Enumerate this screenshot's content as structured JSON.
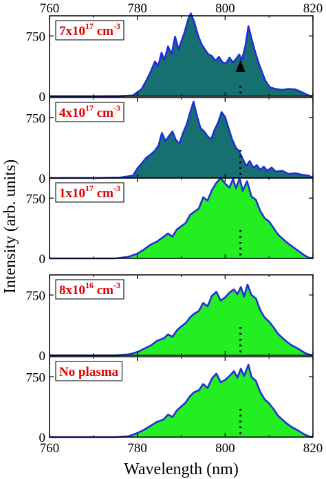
{
  "colors": {
    "line": "#1f2fd6",
    "fill_dense": "#16706f",
    "fill_light": "#22ee22",
    "label_text": "#e00000",
    "frame": "#000000"
  },
  "chart_data": {
    "type": "area",
    "xlabel": "Wavelength (nm)",
    "ylabel": "Intensity (arb. units)",
    "xlim": [
      760,
      820
    ],
    "ylim": [
      0,
      1000
    ],
    "x_ticks": [
      760,
      780,
      800,
      820
    ],
    "y_ticks": [
      0,
      750
    ],
    "shared_x_axis": true,
    "grid": false,
    "marker": {
      "type": "vertical dotted line with arrowhead",
      "x": 803.5
    },
    "panels": [
      {
        "label": {
          "base": "7x10",
          "exp": "17",
          "unit": " cm",
          "unit_exp": "-3"
        },
        "fill": "dense",
        "series": [
          [
            760,
            0
          ],
          [
            770,
            0
          ],
          [
            776,
            2
          ],
          [
            779,
            10
          ],
          [
            781,
            90
          ],
          [
            782,
            190
          ],
          [
            783,
            300
          ],
          [
            784,
            430
          ],
          [
            784.8,
            380
          ],
          [
            785.5,
            540
          ],
          [
            786.2,
            450
          ],
          [
            787,
            620
          ],
          [
            787.8,
            520
          ],
          [
            788.6,
            740
          ],
          [
            789.4,
            580
          ],
          [
            790,
            680
          ],
          [
            790.8,
            800
          ],
          [
            791.6,
            960
          ],
          [
            792.2,
            1030
          ],
          [
            793,
            920
          ],
          [
            793.8,
            760
          ],
          [
            794.6,
            650
          ],
          [
            795.4,
            580
          ],
          [
            796.2,
            520
          ],
          [
            797,
            500
          ],
          [
            797.8,
            440
          ],
          [
            798.6,
            490
          ],
          [
            799.4,
            420
          ],
          [
            800.2,
            410
          ],
          [
            801,
            480
          ],
          [
            801.8,
            420
          ],
          [
            802.6,
            470
          ],
          [
            803.2,
            520
          ],
          [
            803.8,
            450
          ],
          [
            804.6,
            620
          ],
          [
            805.3,
            870
          ],
          [
            806,
            720
          ],
          [
            806.8,
            560
          ],
          [
            807.6,
            420
          ],
          [
            808.4,
            300
          ],
          [
            809.2,
            190
          ],
          [
            810.2,
            110
          ],
          [
            811.5,
            90
          ],
          [
            813,
            80
          ],
          [
            814.5,
            90
          ],
          [
            816,
            85
          ],
          [
            817.5,
            50
          ],
          [
            819,
            10
          ],
          [
            820,
            0
          ]
        ]
      },
      {
        "label": {
          "base": "4x10",
          "exp": "17",
          "unit": " cm",
          "unit_exp": "-3"
        },
        "fill": "dense",
        "series": [
          [
            760,
            0
          ],
          [
            771,
            0
          ],
          [
            776,
            5
          ],
          [
            779,
            30
          ],
          [
            780,
            120
          ],
          [
            781,
            180
          ],
          [
            782,
            250
          ],
          [
            783,
            290
          ],
          [
            784,
            340
          ],
          [
            784.8,
            400
          ],
          [
            785.6,
            560
          ],
          [
            786.4,
            460
          ],
          [
            787.2,
            520
          ],
          [
            788,
            580
          ],
          [
            788.8,
            470
          ],
          [
            789.6,
            430
          ],
          [
            790.4,
            560
          ],
          [
            791.2,
            660
          ],
          [
            792,
            810
          ],
          [
            792.8,
            950
          ],
          [
            793.6,
            770
          ],
          [
            794.4,
            620
          ],
          [
            795.2,
            580
          ],
          [
            796,
            520
          ],
          [
            796.8,
            480
          ],
          [
            797.6,
            600
          ],
          [
            798.4,
            690
          ],
          [
            799.2,
            820
          ],
          [
            800,
            760
          ],
          [
            800.8,
            620
          ],
          [
            801.6,
            480
          ],
          [
            802.4,
            380
          ],
          [
            803.2,
            330
          ],
          [
            804,
            240
          ],
          [
            804.8,
            150
          ],
          [
            805.6,
            210
          ],
          [
            806.4,
            130
          ],
          [
            807.2,
            160
          ],
          [
            808,
            100
          ],
          [
            808.8,
            140
          ],
          [
            809.6,
            90
          ],
          [
            810.6,
            130
          ],
          [
            811.5,
            80
          ],
          [
            813,
            90
          ],
          [
            814.5,
            50
          ],
          [
            816,
            60
          ],
          [
            817.5,
            40
          ],
          [
            819,
            30
          ],
          [
            820,
            0
          ]
        ]
      },
      {
        "label": {
          "base": "1x10",
          "exp": "17",
          "unit": " cm",
          "unit_exp": "-3"
        },
        "fill": "light",
        "series": [
          [
            760,
            0
          ],
          [
            775,
            0
          ],
          [
            778,
            20
          ],
          [
            780,
            60
          ],
          [
            781.5,
            110
          ],
          [
            783,
            170
          ],
          [
            784.5,
            210
          ],
          [
            786,
            270
          ],
          [
            787,
            310
          ],
          [
            788,
            270
          ],
          [
            789,
            360
          ],
          [
            790,
            400
          ],
          [
            791,
            440
          ],
          [
            792,
            540
          ],
          [
            793,
            580
          ],
          [
            794,
            620
          ],
          [
            795,
            760
          ],
          [
            796,
            720
          ],
          [
            797,
            850
          ],
          [
            798,
            940
          ],
          [
            799,
            1000
          ],
          [
            800,
            930
          ],
          [
            801,
            880
          ],
          [
            801.8,
            990
          ],
          [
            802.5,
            870
          ],
          [
            803.3,
            1000
          ],
          [
            804,
            840
          ],
          [
            805,
            960
          ],
          [
            806,
            770
          ],
          [
            807,
            730
          ],
          [
            808,
            590
          ],
          [
            809,
            500
          ],
          [
            810,
            460
          ],
          [
            811,
            380
          ],
          [
            812,
            300
          ],
          [
            813,
            250
          ],
          [
            814,
            200
          ],
          [
            815,
            160
          ],
          [
            816,
            120
          ],
          [
            817,
            80
          ],
          [
            818,
            40
          ],
          [
            819,
            10
          ],
          [
            820,
            0
          ]
        ]
      },
      {
        "label": {
          "base": "8x10",
          "exp": "16",
          "unit": " cm",
          "unit_exp": "-3"
        },
        "fill": "light",
        "series": [
          [
            760,
            0
          ],
          [
            775,
            0
          ],
          [
            778,
            10
          ],
          [
            780,
            40
          ],
          [
            781.5,
            80
          ],
          [
            783,
            120
          ],
          [
            784.5,
            180
          ],
          [
            786,
            210
          ],
          [
            787,
            260
          ],
          [
            788,
            230
          ],
          [
            789,
            310
          ],
          [
            790,
            360
          ],
          [
            791,
            400
          ],
          [
            792,
            470
          ],
          [
            793,
            520
          ],
          [
            794,
            550
          ],
          [
            795,
            650
          ],
          [
            796,
            610
          ],
          [
            797,
            740
          ],
          [
            798,
            790
          ],
          [
            799,
            680
          ],
          [
            800,
            720
          ],
          [
            801,
            780
          ],
          [
            802,
            820
          ],
          [
            802.8,
            760
          ],
          [
            803.6,
            850
          ],
          [
            804.3,
            730
          ],
          [
            805.1,
            880
          ],
          [
            806,
            750
          ],
          [
            807,
            710
          ],
          [
            808,
            560
          ],
          [
            809,
            470
          ],
          [
            810,
            420
          ],
          [
            811,
            350
          ],
          [
            812,
            270
          ],
          [
            813,
            220
          ],
          [
            814,
            170
          ],
          [
            815,
            130
          ],
          [
            816,
            100
          ],
          [
            817,
            70
          ],
          [
            818,
            35
          ],
          [
            819,
            10
          ],
          [
            820,
            0
          ]
        ]
      },
      {
        "label": {
          "base": "No plasma"
        },
        "fill": "light",
        "series": [
          [
            760,
            0
          ],
          [
            775,
            0
          ],
          [
            778,
            10
          ],
          [
            780,
            50
          ],
          [
            781.5,
            90
          ],
          [
            783,
            140
          ],
          [
            784.5,
            190
          ],
          [
            786,
            220
          ],
          [
            787,
            280
          ],
          [
            788,
            250
          ],
          [
            789,
            330
          ],
          [
            790,
            380
          ],
          [
            791,
            430
          ],
          [
            792,
            510
          ],
          [
            793,
            560
          ],
          [
            794,
            580
          ],
          [
            795,
            660
          ],
          [
            796,
            610
          ],
          [
            797,
            730
          ],
          [
            798,
            790
          ],
          [
            799,
            680
          ],
          [
            800,
            710
          ],
          [
            801,
            760
          ],
          [
            802,
            820
          ],
          [
            802.8,
            740
          ],
          [
            803.6,
            850
          ],
          [
            804.3,
            760
          ],
          [
            805.3,
            900
          ],
          [
            806,
            750
          ],
          [
            807,
            700
          ],
          [
            808,
            560
          ],
          [
            809,
            470
          ],
          [
            810,
            420
          ],
          [
            811,
            350
          ],
          [
            812,
            270
          ],
          [
            813,
            220
          ],
          [
            814,
            170
          ],
          [
            815,
            130
          ],
          [
            816,
            100
          ],
          [
            817,
            70
          ],
          [
            818,
            35
          ],
          [
            819,
            10
          ],
          [
            820,
            0
          ]
        ]
      }
    ]
  }
}
